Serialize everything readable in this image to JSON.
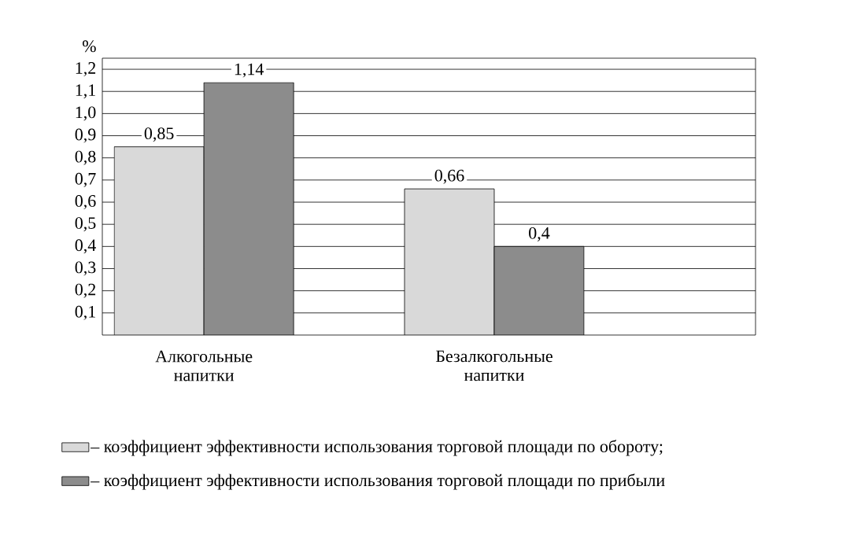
{
  "chart_data": {
    "type": "bar",
    "ylabel": "%",
    "categories": [
      "Алкогольные напитки",
      "Безалкогольные напитки"
    ],
    "series": [
      {
        "name": "– коэффициент эффективности использования торговой площади по обороту;",
        "color": "#d9d9d9",
        "values": [
          0.85,
          0.66
        ],
        "value_labels": [
          "0,85",
          "0,66"
        ]
      },
      {
        "name": "– коэффициент эффективности использования торговой площади по прибыли",
        "color": "#8c8c8c",
        "values": [
          1.14,
          0.4
        ],
        "value_labels": [
          "1,14",
          "0,4"
        ]
      }
    ],
    "ylim": [
      0,
      1.25
    ],
    "yticks": [
      {
        "value": 0.1,
        "label": "0,1"
      },
      {
        "value": 0.2,
        "label": "0,2"
      },
      {
        "value": 0.3,
        "label": "0,3"
      },
      {
        "value": 0.4,
        "label": "0,4"
      },
      {
        "value": 0.5,
        "label": "0,5"
      },
      {
        "value": 0.6,
        "label": "0,6"
      },
      {
        "value": 0.7,
        "label": "0,7"
      },
      {
        "value": 0.8,
        "label": "0,8"
      },
      {
        "value": 0.9,
        "label": "0,9"
      },
      {
        "value": 1.0,
        "label": "1,0"
      },
      {
        "value": 1.1,
        "label": "1,1"
      },
      {
        "value": 1.2,
        "label": "1,2"
      }
    ],
    "grid": "y",
    "legend": "bottom"
  }
}
